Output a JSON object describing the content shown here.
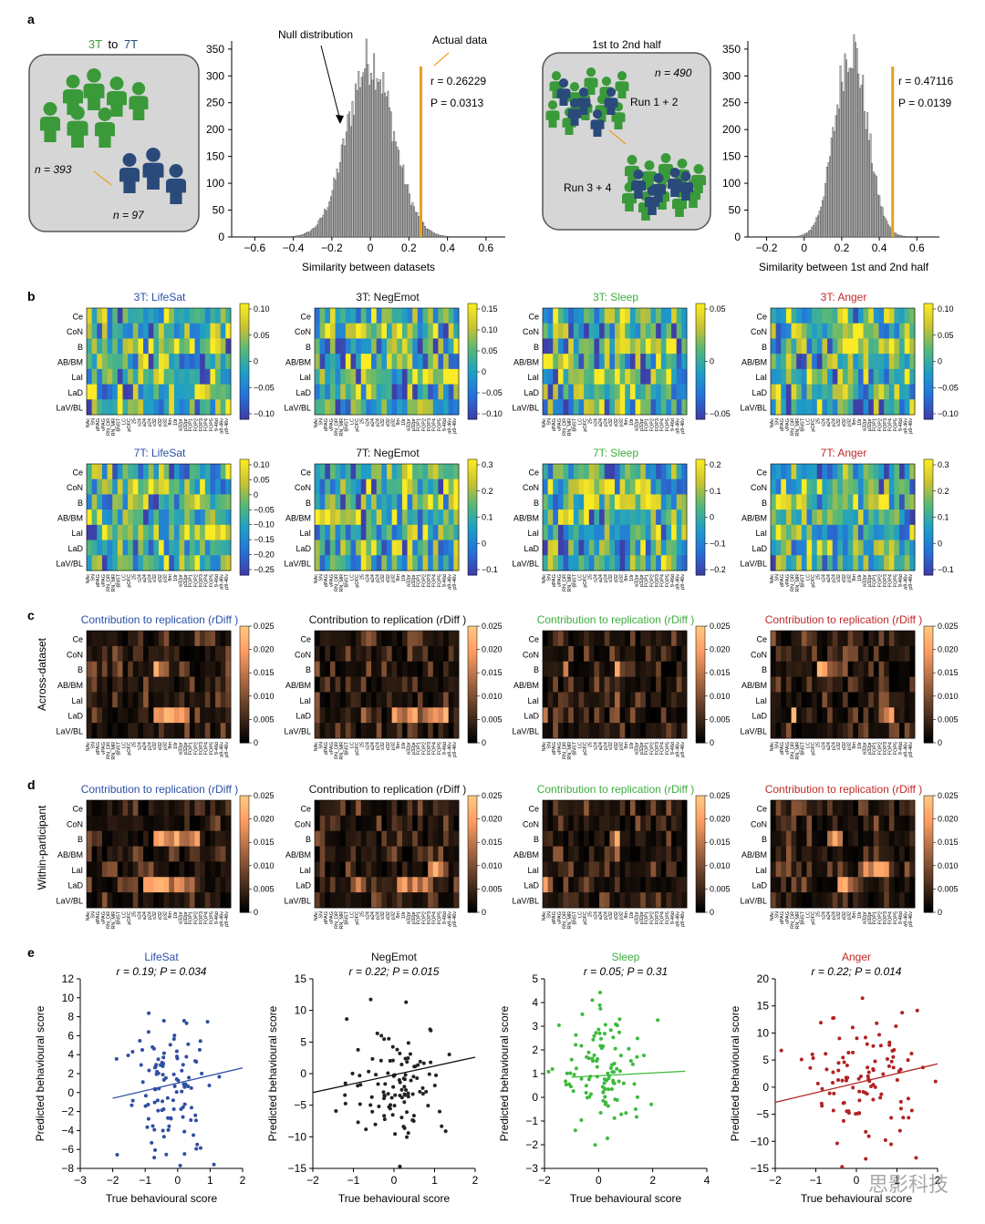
{
  "panel_labels": {
    "a": "a",
    "b": "b",
    "c": "c",
    "d": "d",
    "e": "e"
  },
  "colors": {
    "green": "#3a9a3a",
    "blue": "#2a4a7a",
    "bar_gray": "#aaaaaa",
    "orange": "#e8a020",
    "title_blue": "#2b4fa8",
    "title_black": "#111111",
    "title_green": "#3cae3c",
    "title_red": "#c02828",
    "scatter_blue": "#2f4ea3",
    "scatter_black": "#222222",
    "scatter_green": "#3cba3c",
    "scatter_red": "#b22222"
  },
  "panel_a": {
    "schematic1": {
      "title_3t": "3T",
      "title_to": "to",
      "title_7t": "7T",
      "n1": "n = 393",
      "n2": "n = 97"
    },
    "schematic2": {
      "title": "1st to 2nd half",
      "n": "n = 490",
      "run12": "Run 1 + 2",
      "run34": "Run 3 + 4"
    },
    "hist1": {
      "annotation_null": "Null distribution",
      "annotation_actual": "Actual data",
      "r_text": "r = 0.26229",
      "p_text": "P = 0.0313",
      "xlabel": "Similarity between datasets",
      "xticks": [
        "−0.6",
        "−0.4",
        "−0.2",
        "0",
        "0.2",
        "0.4",
        "0.6"
      ],
      "yticks": [
        "0",
        "50",
        "100",
        "150",
        "200",
        "250",
        "300",
        "350"
      ]
    },
    "hist2": {
      "r_text": "r = 0.47116",
      "p_text": "P = 0.0139",
      "xlabel": "Similarity between 1st and 2nd half",
      "xticks": [
        "−0.2",
        "0",
        "0.2",
        "0.4",
        "0.6"
      ],
      "yticks": [
        "0",
        "50",
        "100",
        "150",
        "200",
        "250",
        "300",
        "350"
      ]
    }
  },
  "heatmap_common": {
    "rows": [
      "Ce",
      "CoN",
      "B",
      "AB/BM",
      "LaI",
      "LaD",
      "LaV/BL"
    ],
    "cols": [
      "NAc",
      "SN",
      "dPAG",
      "vPAG",
      "RN_DR",
      "RN_MR",
      "BNST",
      "LC",
      "pOFC",
      "25",
      "s24",
      "a24",
      "p24",
      "s32",
      "d32",
      "p32",
      "8m",
      "10r",
      "a32pr",
      "p32pr",
      "FOP1",
      "FOP2",
      "FOP3",
      "FOP4",
      "FOP5",
      "9-46d",
      "a9-46v",
      "p9-46v"
    ]
  },
  "panel_b": {
    "row1": [
      {
        "title": "3T: LifeSat",
        "ticks": [
          "0.10",
          "0.05",
          "0",
          "−0.05",
          "−0.10"
        ]
      },
      {
        "title": "3T: NegEmot",
        "ticks": [
          "0.15",
          "0.10",
          "0.05",
          "0",
          "−0.05",
          "−0.10"
        ]
      },
      {
        "title": "3T: Sleep",
        "ticks": [
          "0.05",
          "0",
          "−0.05"
        ]
      },
      {
        "title": "3T: Anger",
        "ticks": [
          "0.10",
          "0.05",
          "0",
          "−0.05",
          "−0.10"
        ]
      }
    ],
    "row2": [
      {
        "title": "7T: LifeSat",
        "ticks": [
          "0.10",
          "0.05",
          "0",
          "−0.05",
          "−0.10",
          "−0.15",
          "−0.20",
          "−0.25"
        ]
      },
      {
        "title": "7T: NegEmot",
        "ticks": [
          "0.3",
          "0.2",
          "0.1",
          "0",
          "−0.1"
        ]
      },
      {
        "title": "7T: Sleep",
        "ticks": [
          "0.2",
          "0.1",
          "0",
          "−0.1",
          "−0.2"
        ]
      },
      {
        "title": "7T: Anger",
        "ticks": [
          "0.3",
          "0.2",
          "0.1",
          "0",
          "−0.1"
        ]
      }
    ]
  },
  "panel_cd": {
    "title": "Contribution to replication (",
    "title_r": "r",
    "title_end": "Diff )",
    "ticks": [
      "0.025",
      "0.020",
      "0.015",
      "0.010",
      "0.005",
      "0"
    ],
    "ylabel_c": "Across-dataset",
    "ylabel_d": "Within-participant"
  },
  "panel_e": {
    "xlabel": "True behavioural score",
    "ylabel": "Predicted behavioural score",
    "plots": [
      {
        "title": "LifeSat",
        "stats": "r = 0.19; P = 0.034",
        "xticks": [
          "−3",
          "−2",
          "−1",
          "0",
          "1",
          "2"
        ],
        "yticks": [
          "12",
          "10",
          "8",
          "6",
          "4",
          "2",
          "0",
          "−2",
          "−4",
          "−6",
          "−8"
        ]
      },
      {
        "title": "NegEmot",
        "stats": "r = 0.22; P = 0.015",
        "xticks": [
          "−2",
          "−1",
          "0",
          "1",
          "2"
        ],
        "yticks": [
          "15",
          "10",
          "5",
          "0",
          "−5",
          "−10",
          "−15"
        ]
      },
      {
        "title": "Sleep",
        "stats": "r = 0.05; P = 0.31",
        "xticks": [
          "−2",
          "0",
          "2",
          "4"
        ],
        "yticks": [
          "5",
          "4",
          "3",
          "2",
          "1",
          "0",
          "−1",
          "−2",
          "−3"
        ]
      },
      {
        "title": "Anger",
        "stats": "r = 0.22; P = 0.014",
        "xticks": [
          "−2",
          "−1",
          "0",
          "1",
          "2"
        ],
        "yticks": [
          "20",
          "15",
          "10",
          "5",
          "0",
          "−5",
          "−10",
          "−15"
        ]
      }
    ]
  },
  "watermark": "思影科技"
}
